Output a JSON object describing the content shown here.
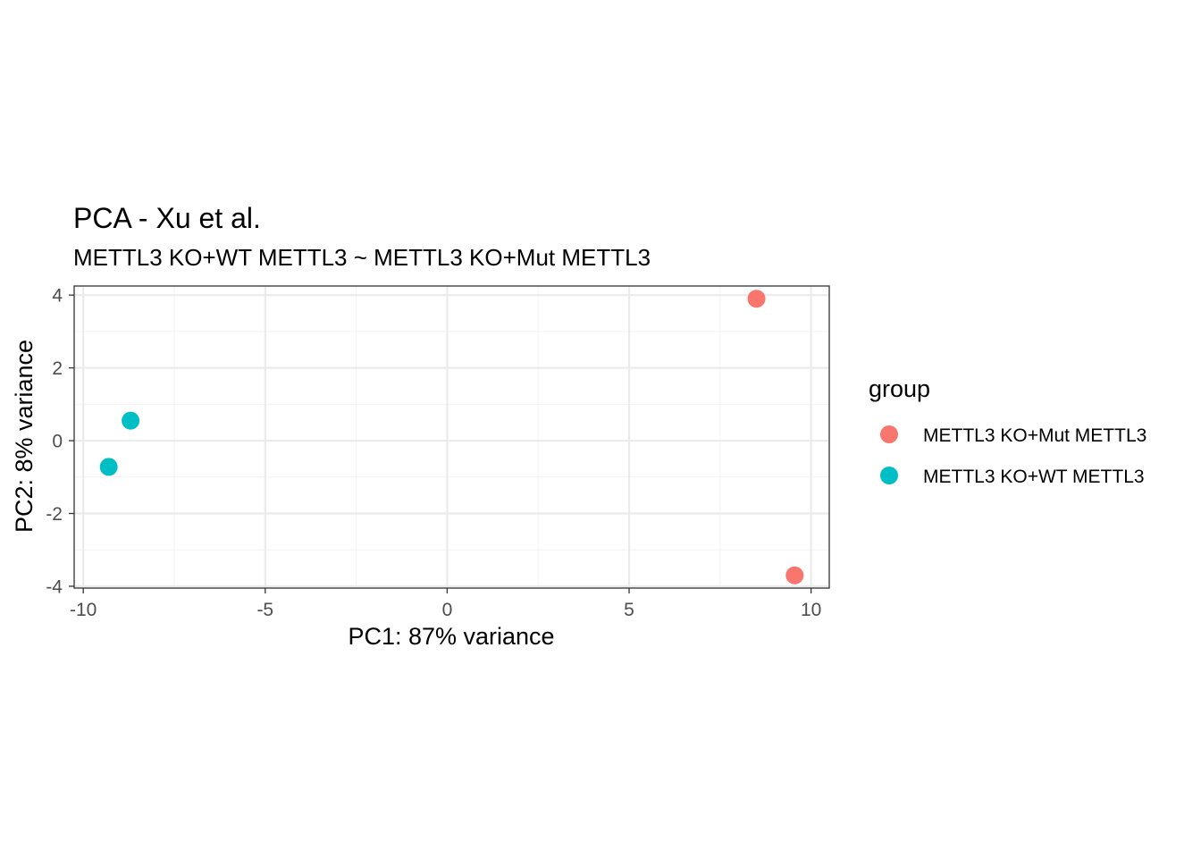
{
  "chart_data": {
    "type": "scatter",
    "title": "PCA - Xu et al.",
    "subtitle": "METTL3 KO+WT METTL3 ~ METTL3 KO+Mut METTL3",
    "xlabel": "PC1: 87% variance",
    "ylabel": "PC2: 8% variance",
    "xlim": [
      -10.25,
      10.5
    ],
    "ylim": [
      -4.05,
      4.25
    ],
    "x_ticks": [
      -10,
      -5,
      0,
      5,
      10
    ],
    "x_tick_labels": [
      "-10",
      "-5",
      "0",
      "5",
      "10"
    ],
    "y_ticks": [
      -4,
      -2,
      0,
      2,
      4
    ],
    "y_tick_labels": [
      "-4",
      "-2",
      "0",
      "2",
      "4"
    ],
    "grid": true,
    "legend_position": "right",
    "legend_title": "group",
    "series": [
      {
        "name": "METTL3 KO+Mut METTL3",
        "color": "#F8766D",
        "points": [
          {
            "x": 8.5,
            "y": 3.9
          },
          {
            "x": 9.55,
            "y": -3.7
          }
        ]
      },
      {
        "name": "METTL3 KO+WT METTL3",
        "color": "#00BFC4",
        "points": [
          {
            "x": -8.7,
            "y": 0.55
          },
          {
            "x": -9.3,
            "y": -0.72
          }
        ]
      }
    ]
  }
}
